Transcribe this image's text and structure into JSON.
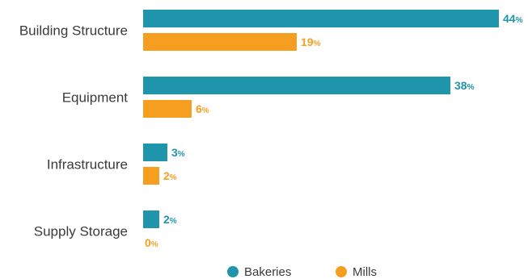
{
  "chart_data": {
    "type": "bar",
    "orientation": "horizontal",
    "categories": [
      "Building Structure",
      "Equipment",
      "Infrastructure",
      "Supply Storage"
    ],
    "series": [
      {
        "name": "Bakeries",
        "values": [
          44,
          38,
          3,
          2
        ],
        "color": "#1e95ab"
      },
      {
        "name": "Mills",
        "values": [
          19,
          6,
          2,
          0
        ],
        "color": "#f59e1f"
      }
    ],
    "value_suffix": "%",
    "xlim": [
      0,
      44
    ],
    "grid": false,
    "legend": "bottom"
  }
}
